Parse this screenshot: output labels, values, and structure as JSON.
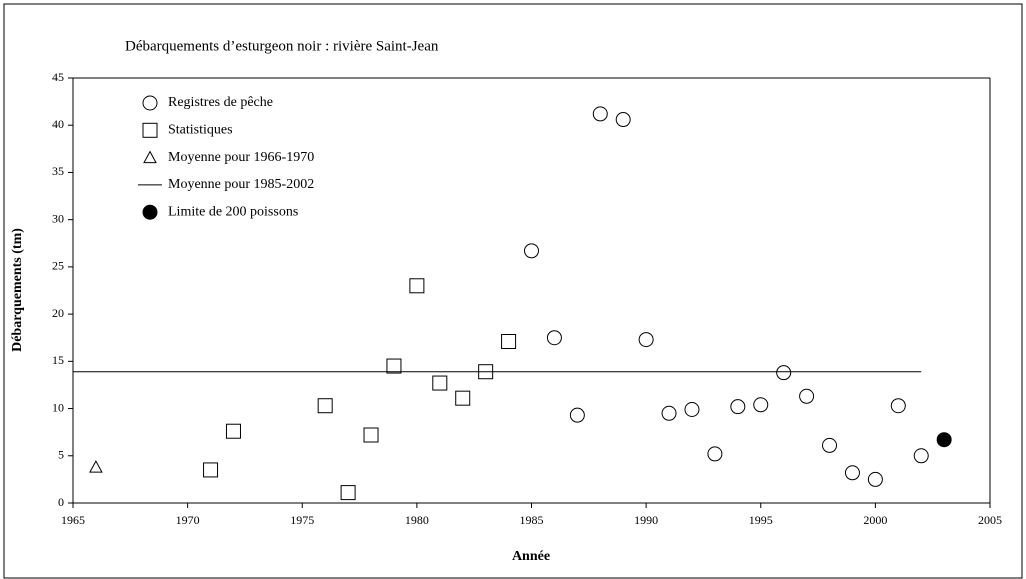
{
  "chart_data": {
    "type": "scatter",
    "title": "Débarquements d’esturgeon noir : rivière Saint-Jean",
    "xlabel": "Année",
    "ylabel": "Débarquements (tm)",
    "xlim": [
      1965,
      2005
    ],
    "xticks": [
      1965,
      1970,
      1975,
      1980,
      1985,
      1990,
      1995,
      2000,
      2005
    ],
    "ylim": [
      0,
      45
    ],
    "yticks": [
      0,
      5,
      10,
      15,
      20,
      25,
      30,
      35,
      40,
      45
    ],
    "legend": "upper left",
    "series": [
      {
        "name": "Registres de pêche",
        "marker": "circle",
        "color": "#000000",
        "x": [
          1985,
          1986,
          1987,
          1988,
          1989,
          1990,
          1991,
          1992,
          1993,
          1994,
          1995,
          1996,
          1997,
          1998,
          1999,
          2000,
          2001,
          2002
        ],
        "values": [
          26.7,
          17.5,
          9.3,
          41.2,
          40.6,
          17.3,
          9.5,
          9.9,
          5.2,
          10.2,
          10.4,
          13.8,
          11.3,
          6.1,
          3.2,
          2.5,
          10.3,
          5.0
        ]
      },
      {
        "name": "Statistiques",
        "marker": "square",
        "color": "#000000",
        "x": [
          1971,
          1972,
          1976,
          1977,
          1978,
          1979,
          1980,
          1981,
          1982,
          1983,
          1984
        ],
        "values": [
          3.5,
          7.6,
          10.3,
          1.1,
          7.2,
          14.5,
          23.0,
          12.7,
          11.1,
          13.9,
          17.1
        ]
      },
      {
        "name": "Moyenne pour 1966-1970",
        "marker": "triangle",
        "color": "#000000",
        "x": [
          1966
        ],
        "values": [
          3.8
        ]
      },
      {
        "name": "Moyenne pour 1985-2002",
        "marker": "line",
        "color": "#000000",
        "x": [
          1965,
          2002
        ],
        "values": [
          13.9,
          13.9
        ]
      },
      {
        "name": "Limite de 200 poissons",
        "marker": "filled-circle",
        "color": "#000000",
        "x": [
          2003
        ],
        "values": [
          6.7
        ]
      }
    ]
  }
}
